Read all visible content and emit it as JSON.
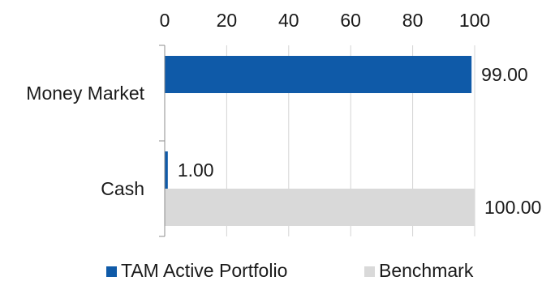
{
  "chart_data": {
    "type": "bar",
    "orientation": "horizontal",
    "categories": [
      "Money Market",
      "Cash"
    ],
    "series": [
      {
        "name": "TAM Active Portfolio",
        "values": [
          99.0,
          1.0
        ],
        "labels": [
          "99.00",
          "1.00"
        ],
        "color": "#0f5aa8"
      },
      {
        "name": "Benchmark",
        "values": [
          0,
          100.0
        ],
        "labels": [
          "",
          "100.00"
        ],
        "color": "#d9d9d9"
      }
    ],
    "xlim": [
      0,
      100
    ],
    "x_ticks": [
      0,
      20,
      40,
      60,
      80,
      100
    ],
    "x_tick_labels": [
      "0",
      "20",
      "40",
      "60",
      "80",
      "100"
    ],
    "x_axis_position": "top",
    "grid": true,
    "legend_position": "bottom"
  }
}
